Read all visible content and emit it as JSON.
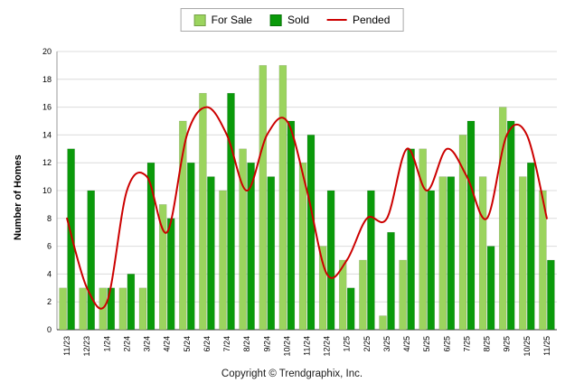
{
  "chart_data": {
    "type": "bar",
    "subtype": "grouped-bars-with-line-overlay",
    "ylabel": "Number of Homes",
    "xlabel": "",
    "ylim": [
      0,
      20
    ],
    "y_ticks": [
      0,
      2,
      4,
      6,
      8,
      10,
      12,
      14,
      16,
      18,
      20
    ],
    "grid": true,
    "legend_position": "top-center",
    "categories": [
      "11/23",
      "12/23",
      "1/24",
      "2/24",
      "3/24",
      "4/24",
      "5/24",
      "6/24",
      "7/24",
      "8/24",
      "9/24",
      "10/24",
      "11/24",
      "12/24",
      "1/25",
      "2/25",
      "3/25",
      "4/25",
      "5/25",
      "6/25",
      "7/25",
      "8/25",
      "9/25",
      "10/25",
      "11/25"
    ],
    "series": [
      {
        "name": "For Sale",
        "type": "bar",
        "color": "#9bd45e",
        "values": [
          3,
          3,
          3,
          3,
          3,
          9,
          15,
          17,
          10,
          13,
          19,
          19,
          12,
          6,
          5,
          5,
          1,
          5,
          13,
          11,
          14,
          11,
          16,
          11,
          10
        ]
      },
      {
        "name": "Sold",
        "type": "bar",
        "color": "#0a9a0a",
        "values": [
          13,
          10,
          3,
          4,
          12,
          8,
          12,
          11,
          17,
          12,
          11,
          15,
          14,
          10,
          3,
          10,
          7,
          13,
          10,
          11,
          15,
          6,
          15,
          12,
          5
        ]
      },
      {
        "name": "Pended",
        "type": "line",
        "color": "#cc0000",
        "values": [
          8,
          3,
          2,
          10,
          11,
          7,
          14,
          16,
          14,
          10,
          14,
          15,
          10,
          4,
          5,
          8,
          8,
          13,
          10,
          13,
          11,
          8,
          14,
          14,
          8
        ]
      }
    ]
  },
  "footer": {
    "copyright": "Copyright © Trendgraphix, Inc."
  }
}
